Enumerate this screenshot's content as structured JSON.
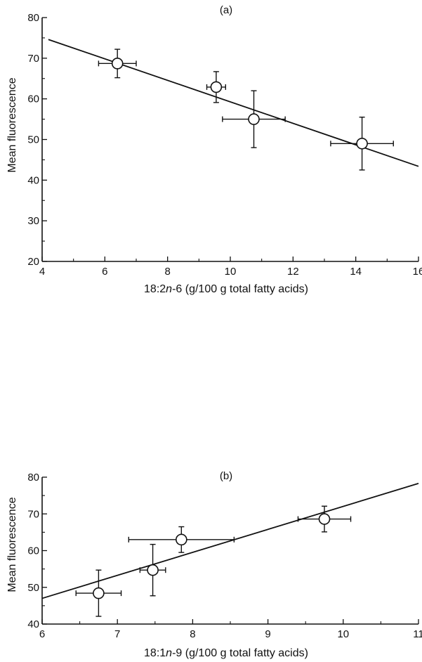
{
  "chart_data": [
    {
      "type": "scatter",
      "panel_label": "(a)",
      "xlabel": "18:2n-6 (g/100 g total fatty acids)",
      "xlabel_prefix": "18:2",
      "xlabel_italic": "n",
      "xlabel_suffix": "-6 (g/100 g total fatty acids)",
      "ylabel": "Mean fluorescence",
      "xlim": [
        4,
        16
      ],
      "ylim": [
        20,
        80
      ],
      "xticks": [
        4,
        6,
        8,
        10,
        12,
        14,
        16
      ],
      "yticks": [
        20,
        30,
        40,
        50,
        60,
        70,
        80
      ],
      "points": [
        {
          "x": 6.4,
          "y": 68.7,
          "xerr": 0.6,
          "yerr": 3.5
        },
        {
          "x": 9.55,
          "y": 62.9,
          "xerr": 0.3,
          "yerr": 3.8
        },
        {
          "x": 10.75,
          "y": 55.0,
          "xerr": 1.0,
          "yerr": 7.0
        },
        {
          "x": 14.2,
          "y": 49.0,
          "xerr": 1.0,
          "yerr": 6.5
        }
      ],
      "fit_line": {
        "x": [
          4.2,
          16
        ],
        "y": [
          74.6,
          43.4
        ]
      },
      "grid": false
    },
    {
      "type": "scatter",
      "panel_label": "(b)",
      "xlabel": "18:1n-9 (g/100 g total fatty acids)",
      "xlabel_prefix": "18:1",
      "xlabel_italic": "n",
      "xlabel_suffix": "-9 (g/100 g total fatty acids)",
      "ylabel": "Mean fluorescence",
      "xlim": [
        6,
        11
      ],
      "ylim": [
        40,
        80
      ],
      "xticks": [
        6,
        7,
        8,
        9,
        10,
        11
      ],
      "yticks": [
        40,
        50,
        60,
        70,
        80
      ],
      "points": [
        {
          "x": 6.75,
          "y": 48.4,
          "xerr": 0.3,
          "yerr": 6.3
        },
        {
          "x": 7.47,
          "y": 54.7,
          "xerr": 0.17,
          "yerr": 7.0
        },
        {
          "x": 7.85,
          "y": 63.0,
          "xerr": 0.7,
          "yerr": 3.5
        },
        {
          "x": 9.75,
          "y": 68.6,
          "xerr": 0.35,
          "yerr": 3.5
        }
      ],
      "fit_line": {
        "x": [
          6,
          11
        ],
        "y": [
          47.0,
          78.3
        ]
      },
      "grid": false
    }
  ]
}
